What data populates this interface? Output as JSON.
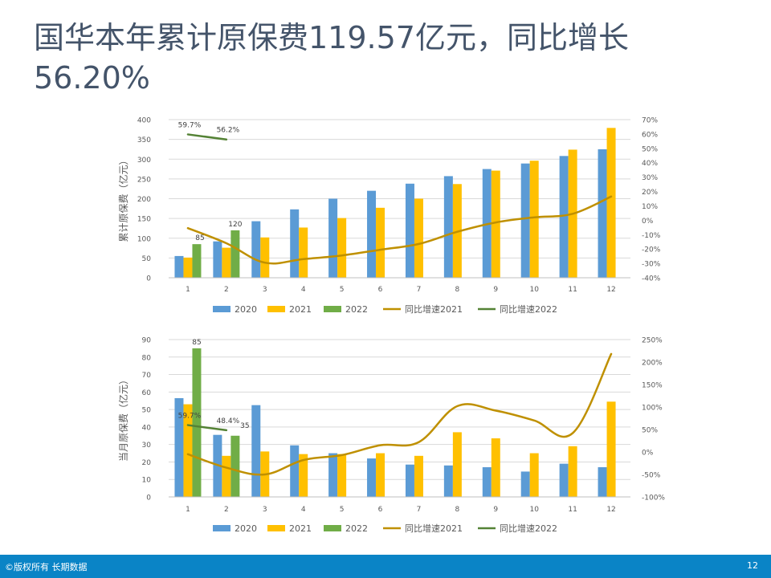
{
  "slide": {
    "title": "国华本年累计原保费119.57亿元，同比增长56.20%",
    "footer_left": "©版权所有 长期数据",
    "page_number": "12"
  },
  "colors": {
    "s2020": "#5b9bd5",
    "s2021": "#ffc000",
    "s2022": "#70ad47",
    "line2021": "#bf9000",
    "line2022": "#548235",
    "title": "#44546a",
    "footer": "#0a84c6"
  },
  "chart_data": [
    {
      "type": "bar",
      "categories": [
        "1",
        "2",
        "3",
        "4",
        "5",
        "6",
        "7",
        "8",
        "9",
        "10",
        "11",
        "12"
      ],
      "ylabel": "累计原保费（亿元）",
      "ylim": [
        0,
        400
      ],
      "y_ticks": [
        "0",
        "50",
        "100",
        "150",
        "200",
        "250",
        "300",
        "350",
        "400"
      ],
      "y2lim": [
        -40,
        70
      ],
      "y2_ticks": [
        "-40%",
        "-30%",
        "-20%",
        "-10%",
        "0%",
        "10%",
        "20%",
        "30%",
        "40%",
        "50%",
        "60%",
        "70%"
      ],
      "series": [
        {
          "name": "2020",
          "kind": "bar",
          "values": [
            55,
            92,
            143,
            173,
            200,
            220,
            238,
            257,
            275,
            289,
            308,
            325
          ]
        },
        {
          "name": "2021",
          "kind": "bar",
          "values": [
            51,
            76,
            102,
            127,
            151,
            177,
            200,
            237,
            271,
            296,
            324,
            379
          ]
        },
        {
          "name": "2022",
          "kind": "bar",
          "values": [
            85,
            120,
            null,
            null,
            null,
            null,
            null,
            null,
            null,
            null,
            null,
            null
          ]
        },
        {
          "name": "同比增速2021",
          "kind": "line",
          "axis": "y2",
          "values": [
            -5.5,
            -16,
            -29.5,
            -27,
            -24.5,
            -20.5,
            -16.5,
            -8,
            -1.5,
            2,
            4.5,
            16.5
          ]
        },
        {
          "name": "同比增速2022",
          "kind": "line",
          "axis": "y2",
          "values": [
            59.7,
            56.2,
            null,
            null,
            null,
            null,
            null,
            null,
            null,
            null,
            null,
            null
          ]
        }
      ],
      "data_labels": [
        {
          "series": "2022",
          "index": 0,
          "text": "85"
        },
        {
          "series": "2022",
          "index": 1,
          "text": "120"
        },
        {
          "series": "同比增速2022",
          "index": 0,
          "text": "59.7%"
        },
        {
          "series": "同比增速2022",
          "index": 1,
          "text": "56.2%"
        }
      ],
      "legend": "bottom",
      "grid": true
    },
    {
      "type": "bar",
      "categories": [
        "1",
        "2",
        "3",
        "4",
        "5",
        "6",
        "7",
        "8",
        "9",
        "10",
        "11",
        "12"
      ],
      "ylabel": "当月原保费（亿元）",
      "ylim": [
        0,
        90
      ],
      "y_ticks": [
        "0",
        "10",
        "20",
        "30",
        "40",
        "50",
        "60",
        "70",
        "80",
        "90"
      ],
      "y2lim": [
        -100,
        250
      ],
      "y2_ticks": [
        "-100%",
        "-50%",
        "0%",
        "50%",
        "100%",
        "150%",
        "200%",
        "250%"
      ],
      "series": [
        {
          "name": "2020",
          "kind": "bar",
          "values": [
            56.5,
            35.5,
            52.5,
            29.5,
            25,
            22,
            18.5,
            18,
            17,
            14.5,
            19,
            17
          ]
        },
        {
          "name": "2021",
          "kind": "bar",
          "values": [
            53,
            23.5,
            26,
            24.5,
            24.5,
            25,
            23.5,
            37,
            33.5,
            25,
            29,
            54.5
          ]
        },
        {
          "name": "2022",
          "kind": "bar",
          "values": [
            85,
            35,
            null,
            null,
            null,
            null,
            null,
            null,
            null,
            null,
            null,
            null
          ]
        },
        {
          "name": "同比增速2021",
          "kind": "line",
          "axis": "y2",
          "values": [
            -5,
            -35,
            -50,
            -18,
            -7,
            15,
            22,
            102,
            92,
            70,
            42,
            218
          ]
        },
        {
          "name": "同比增速2022",
          "kind": "line",
          "axis": "y2",
          "values": [
            59.7,
            48.4,
            null,
            null,
            null,
            null,
            null,
            null,
            null,
            null,
            null,
            null
          ]
        }
      ],
      "data_labels": [
        {
          "series": "2022",
          "index": 0,
          "text": "85"
        },
        {
          "series": "2022",
          "index": 1,
          "text": "35"
        },
        {
          "series": "同比增速2022",
          "index": 0,
          "text": "59.7%"
        },
        {
          "series": "同比增速2022",
          "index": 1,
          "text": "48.4%"
        }
      ],
      "legend": "bottom",
      "grid": true
    }
  ]
}
